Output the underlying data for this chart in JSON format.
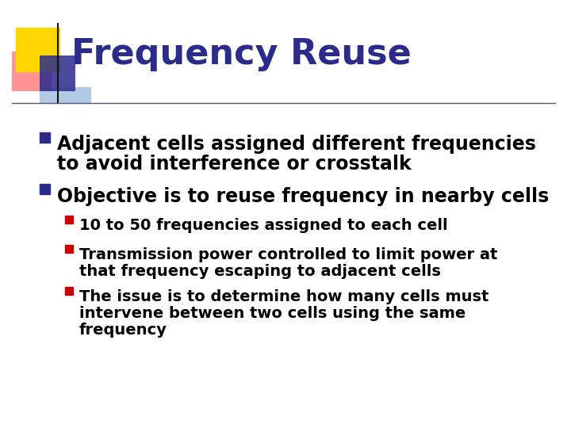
{
  "title": "Frequency Reuse",
  "title_color": "#2B2B8C",
  "title_fontsize": 32,
  "background_color": "#FFFFFF",
  "bullet1_line1": "Adjacent cells assigned different frequencies",
  "bullet1_line2": "to avoid interference or crosstalk",
  "bullet2": "Objective is to reuse frequency in nearby cells",
  "sub_bullet1": "10 to 50 frequencies assigned to each cell",
  "sub_bullet2_line1": "Transmission power controlled to limit power at",
  "sub_bullet2_line2": "that frequency escaping to adjacent cells",
  "sub_bullet3_line1": "The issue is to determine how many cells must",
  "sub_bullet3_line2": "intervene between two cells using the same",
  "sub_bullet3_line3": "frequency",
  "main_bullet_color": "#2B2B8C",
  "sub_bullet_color": "#CC0000",
  "text_color": "#000000",
  "main_bullet_fontsize": 17,
  "sub_bullet_fontsize": 14,
  "line_color": "#333399",
  "deco_yellow": "#FFD700",
  "deco_red": "#FF6666",
  "deco_blue_dark": "#2B2B8C",
  "deco_blue_light": "#6699CC"
}
